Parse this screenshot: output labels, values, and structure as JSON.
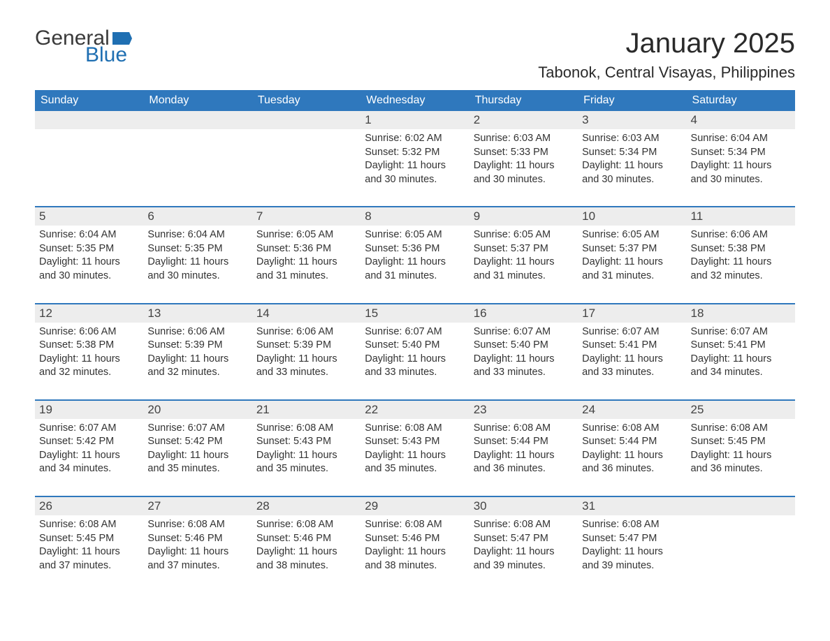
{
  "logo": {
    "general": "General",
    "blue": "Blue",
    "flag_color": "#1f6fb2"
  },
  "title": "January 2025",
  "location": "Tabonok, Central Visayas, Philippines",
  "colors": {
    "header_bg": "#2f78bd",
    "header_text": "#ffffff",
    "daynum_bg": "#ededed",
    "daynum_text": "#434343",
    "body_text": "#333333",
    "week_border": "#2f78bd",
    "page_bg": "#ffffff",
    "logo_general": "#3a3a3a",
    "logo_blue": "#1f6fb2"
  },
  "typography": {
    "title_fontsize": 40,
    "location_fontsize": 22,
    "dayheader_fontsize": 16,
    "daynum_fontsize": 17,
    "body_fontsize": 14.5,
    "logo_fontsize": 30
  },
  "day_headers": [
    "Sunday",
    "Monday",
    "Tuesday",
    "Wednesday",
    "Thursday",
    "Friday",
    "Saturday"
  ],
  "labels": {
    "sunrise": "Sunrise:",
    "sunset": "Sunset:",
    "daylight": "Daylight:"
  },
  "weeks": [
    [
      {
        "empty": true
      },
      {
        "empty": true
      },
      {
        "empty": true
      },
      {
        "n": "1",
        "sunrise": "6:02 AM",
        "sunset": "5:32 PM",
        "daylight": "11 hours and 30 minutes."
      },
      {
        "n": "2",
        "sunrise": "6:03 AM",
        "sunset": "5:33 PM",
        "daylight": "11 hours and 30 minutes."
      },
      {
        "n": "3",
        "sunrise": "6:03 AM",
        "sunset": "5:34 PM",
        "daylight": "11 hours and 30 minutes."
      },
      {
        "n": "4",
        "sunrise": "6:04 AM",
        "sunset": "5:34 PM",
        "daylight": "11 hours and 30 minutes."
      }
    ],
    [
      {
        "n": "5",
        "sunrise": "6:04 AM",
        "sunset": "5:35 PM",
        "daylight": "11 hours and 30 minutes."
      },
      {
        "n": "6",
        "sunrise": "6:04 AM",
        "sunset": "5:35 PM",
        "daylight": "11 hours and 30 minutes."
      },
      {
        "n": "7",
        "sunrise": "6:05 AM",
        "sunset": "5:36 PM",
        "daylight": "11 hours and 31 minutes."
      },
      {
        "n": "8",
        "sunrise": "6:05 AM",
        "sunset": "5:36 PM",
        "daylight": "11 hours and 31 minutes."
      },
      {
        "n": "9",
        "sunrise": "6:05 AM",
        "sunset": "5:37 PM",
        "daylight": "11 hours and 31 minutes."
      },
      {
        "n": "10",
        "sunrise": "6:05 AM",
        "sunset": "5:37 PM",
        "daylight": "11 hours and 31 minutes."
      },
      {
        "n": "11",
        "sunrise": "6:06 AM",
        "sunset": "5:38 PM",
        "daylight": "11 hours and 32 minutes."
      }
    ],
    [
      {
        "n": "12",
        "sunrise": "6:06 AM",
        "sunset": "5:38 PM",
        "daylight": "11 hours and 32 minutes."
      },
      {
        "n": "13",
        "sunrise": "6:06 AM",
        "sunset": "5:39 PM",
        "daylight": "11 hours and 32 minutes."
      },
      {
        "n": "14",
        "sunrise": "6:06 AM",
        "sunset": "5:39 PM",
        "daylight": "11 hours and 33 minutes."
      },
      {
        "n": "15",
        "sunrise": "6:07 AM",
        "sunset": "5:40 PM",
        "daylight": "11 hours and 33 minutes."
      },
      {
        "n": "16",
        "sunrise": "6:07 AM",
        "sunset": "5:40 PM",
        "daylight": "11 hours and 33 minutes."
      },
      {
        "n": "17",
        "sunrise": "6:07 AM",
        "sunset": "5:41 PM",
        "daylight": "11 hours and 33 minutes."
      },
      {
        "n": "18",
        "sunrise": "6:07 AM",
        "sunset": "5:41 PM",
        "daylight": "11 hours and 34 minutes."
      }
    ],
    [
      {
        "n": "19",
        "sunrise": "6:07 AM",
        "sunset": "5:42 PM",
        "daylight": "11 hours and 34 minutes."
      },
      {
        "n": "20",
        "sunrise": "6:07 AM",
        "sunset": "5:42 PM",
        "daylight": "11 hours and 35 minutes."
      },
      {
        "n": "21",
        "sunrise": "6:08 AM",
        "sunset": "5:43 PM",
        "daylight": "11 hours and 35 minutes."
      },
      {
        "n": "22",
        "sunrise": "6:08 AM",
        "sunset": "5:43 PM",
        "daylight": "11 hours and 35 minutes."
      },
      {
        "n": "23",
        "sunrise": "6:08 AM",
        "sunset": "5:44 PM",
        "daylight": "11 hours and 36 minutes."
      },
      {
        "n": "24",
        "sunrise": "6:08 AM",
        "sunset": "5:44 PM",
        "daylight": "11 hours and 36 minutes."
      },
      {
        "n": "25",
        "sunrise": "6:08 AM",
        "sunset": "5:45 PM",
        "daylight": "11 hours and 36 minutes."
      }
    ],
    [
      {
        "n": "26",
        "sunrise": "6:08 AM",
        "sunset": "5:45 PM",
        "daylight": "11 hours and 37 minutes."
      },
      {
        "n": "27",
        "sunrise": "6:08 AM",
        "sunset": "5:46 PM",
        "daylight": "11 hours and 37 minutes."
      },
      {
        "n": "28",
        "sunrise": "6:08 AM",
        "sunset": "5:46 PM",
        "daylight": "11 hours and 38 minutes."
      },
      {
        "n": "29",
        "sunrise": "6:08 AM",
        "sunset": "5:46 PM",
        "daylight": "11 hours and 38 minutes."
      },
      {
        "n": "30",
        "sunrise": "6:08 AM",
        "sunset": "5:47 PM",
        "daylight": "11 hours and 39 minutes."
      },
      {
        "n": "31",
        "sunrise": "6:08 AM",
        "sunset": "5:47 PM",
        "daylight": "11 hours and 39 minutes."
      },
      {
        "empty": true
      }
    ]
  ]
}
